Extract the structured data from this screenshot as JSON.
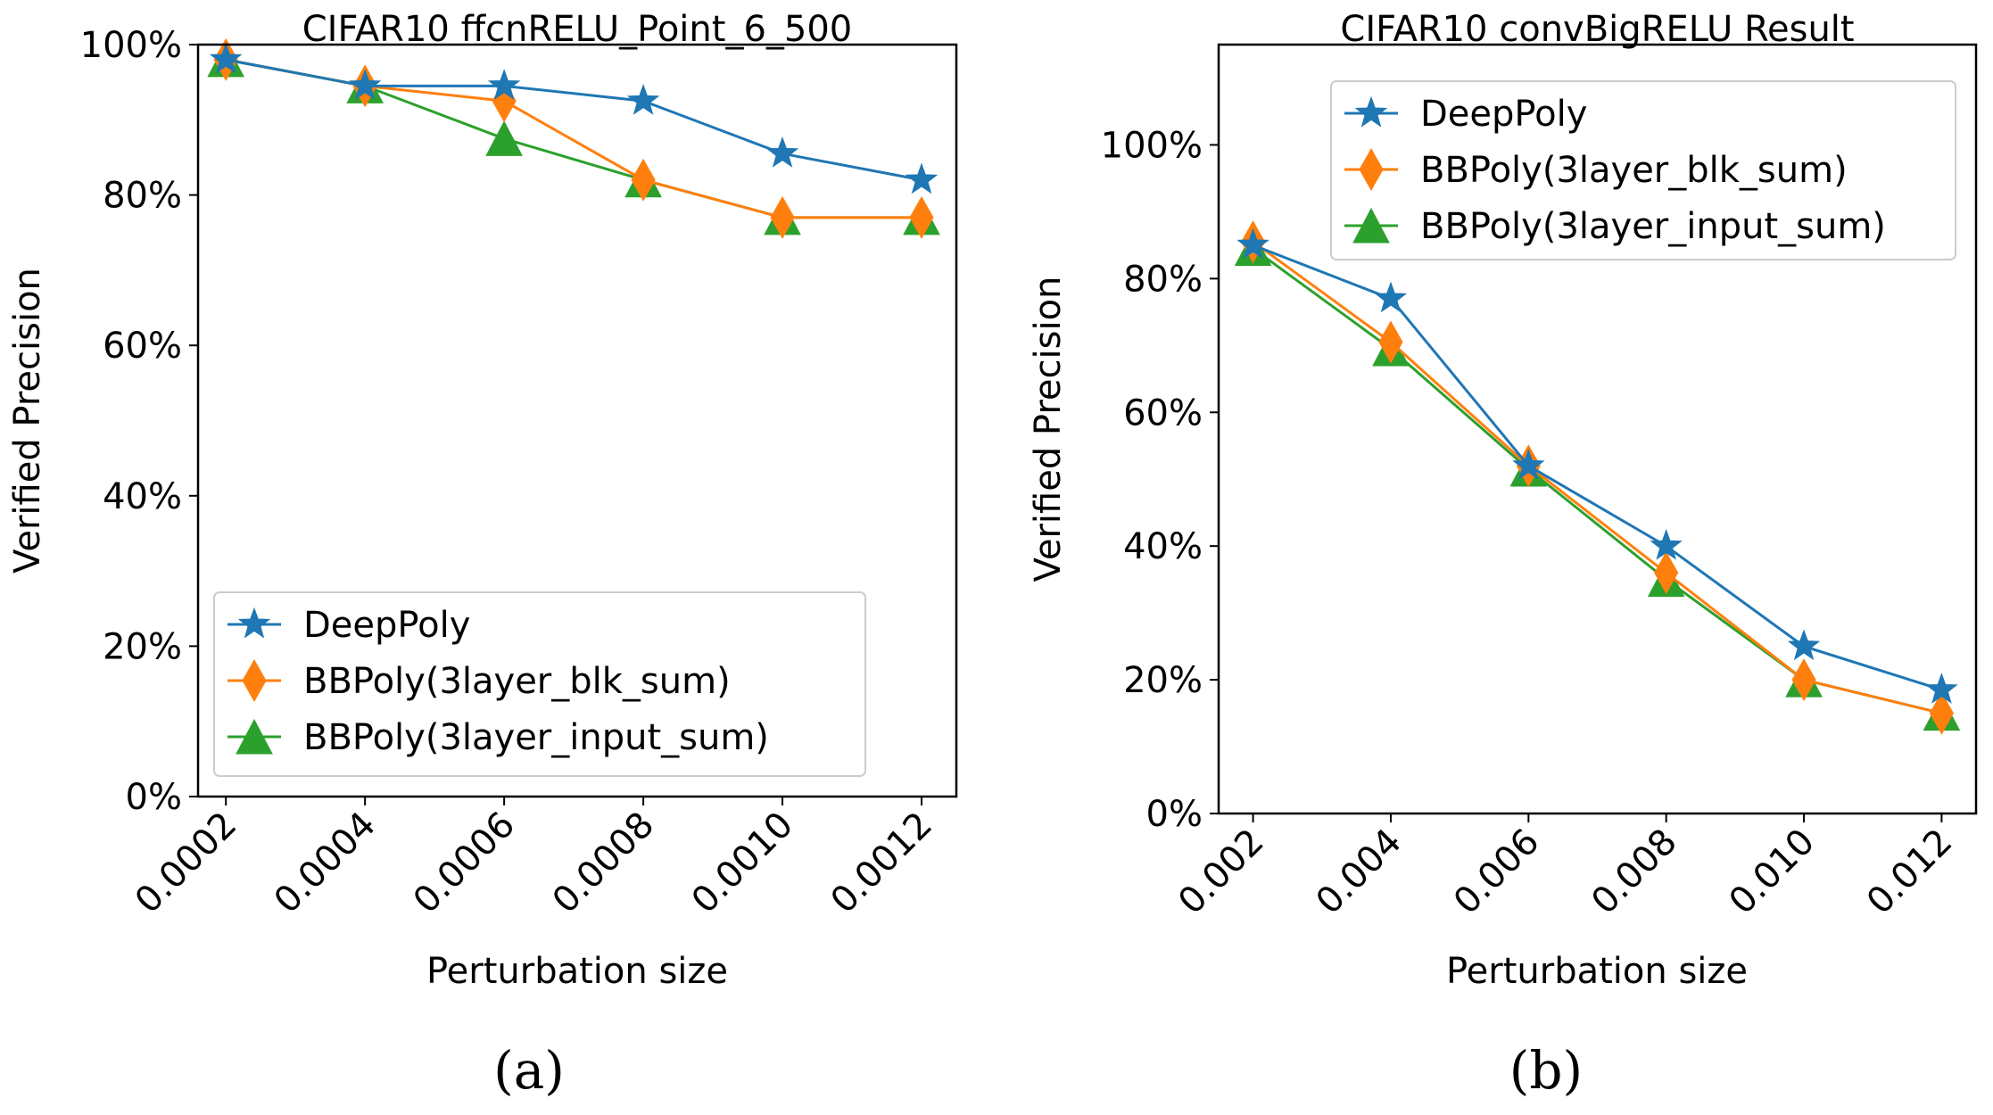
{
  "chart_data": [
    {
      "type": "line",
      "title": "CIFAR10 ffcnRELU_Point_6_500",
      "xlabel": "Perturbation size",
      "ylabel": "Verified Precision",
      "caption": "(a)",
      "x_ticks": [
        "0.0002",
        "0.0004",
        "0.0006",
        "0.0008",
        "0.0010",
        "0.0012"
      ],
      "y_ticks": [
        "0%",
        "20%",
        "40%",
        "60%",
        "80%",
        "100%"
      ],
      "x": [
        0.0002,
        0.0004,
        0.0006,
        0.0008,
        0.001,
        0.0012
      ],
      "xlim": [
        0.00016,
        0.00125
      ],
      "ylim": [
        0,
        100
      ],
      "legend_position": "lower-center",
      "series": [
        {
          "name": "DeepPoly",
          "values": [
            98,
            94.5,
            94.5,
            92.5,
            85.5,
            82
          ],
          "color": "#1f77b4",
          "marker": "star"
        },
        {
          "name": "BBPoly(3layer_blk_sum)",
          "values": [
            98,
            94.5,
            92.5,
            82,
            77,
            77
          ],
          "color": "#ff7f0e",
          "marker": "diamond"
        },
        {
          "name": "BBPoly(3layer_input_sum)",
          "values": [
            98,
            94.5,
            87.5,
            82,
            77,
            77
          ],
          "color": "#2ca02c",
          "marker": "triangle"
        }
      ]
    },
    {
      "type": "line",
      "title": "CIFAR10 convBigRELU Result",
      "xlabel": "Perturbation size",
      "ylabel": "Verified Precision",
      "caption": "(b)",
      "x_ticks": [
        "0.002",
        "0.004",
        "0.006",
        "0.008",
        "0.010",
        "0.012"
      ],
      "y_ticks": [
        "0%",
        "20%",
        "40%",
        "60%",
        "80%",
        "100%"
      ],
      "x": [
        0.002,
        0.004,
        0.006,
        0.008,
        0.01,
        0.012
      ],
      "xlim": [
        0.0015,
        0.0125
      ],
      "ylim": [
        0,
        115
      ],
      "legend_position": "top-right",
      "series": [
        {
          "name": "DeepPoly",
          "values": [
            85,
            77,
            52,
            40,
            25,
            18.5
          ],
          "color": "#1f77b4",
          "marker": "star"
        },
        {
          "name": "BBPoly(3layer_blk_sum)",
          "values": [
            85.5,
            70.5,
            52,
            36,
            20,
            15
          ],
          "color": "#ff7f0e",
          "marker": "diamond"
        },
        {
          "name": "BBPoly(3layer_input_sum)",
          "values": [
            84.5,
            69.5,
            51.5,
            35,
            20,
            15
          ],
          "color": "#2ca02c",
          "marker": "triangle"
        }
      ]
    }
  ]
}
